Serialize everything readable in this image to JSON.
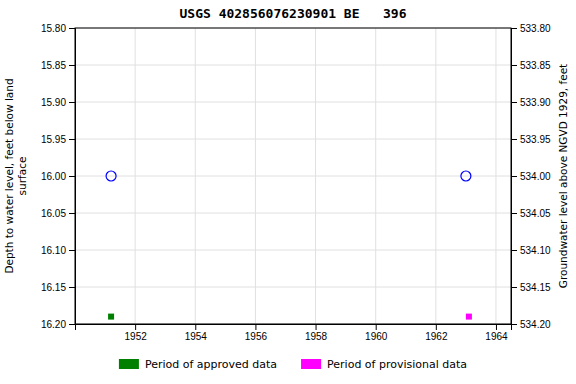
{
  "chart_data": {
    "type": "scatter",
    "title": "USGS 402856076230901 BE   396",
    "ylabel": "Depth to water level, feet below land\nsurface",
    "y2label": "Groundwater level above NGVD 1929, feet",
    "xlim": [
      1950.0,
      1964.5
    ],
    "xticks": [
      1952,
      1954,
      1956,
      1958,
      1960,
      1962,
      1964
    ],
    "ylim": [
      16.2,
      15.8
    ],
    "yticks": [
      {
        "value": 15.8,
        "label": "15.80"
      },
      15.85,
      {
        "value": 15.9,
        "label": "15.90"
      },
      15.95,
      {
        "value": 16.0,
        "label": "16.00"
      },
      16.05,
      {
        "value": 16.1,
        "label": "16.10"
      },
      16.15,
      {
        "value": 16.2,
        "label": "16.20"
      }
    ],
    "y2lim": [
      534.2,
      533.8
    ],
    "y2ticks": [
      {
        "value": 534.2,
        "label": "534.20"
      },
      534.15,
      {
        "value": 534.1,
        "label": "534.10"
      },
      534.05,
      {
        "value": 534.0,
        "label": "534.00"
      },
      533.95,
      {
        "value": 533.9,
        "label": "533.90"
      },
      533.85,
      {
        "value": 533.8,
        "label": "533.80"
      }
    ],
    "grid": true,
    "legend": "bottom",
    "series": [
      {
        "name": "Period of approved data",
        "color": "#008000",
        "marker": "square",
        "x": [
          1951.2
        ],
        "values": [
          16.19
        ]
      },
      {
        "name": "Period of provisional data",
        "color": "#ff00ff",
        "marker": "square",
        "x": [
          1963.1
        ],
        "values": [
          16.19
        ]
      },
      {
        "color": "#0000ff",
        "marker": "circle",
        "x": [
          1951.2,
          1963.0
        ],
        "values": [
          16.0,
          16.0
        ]
      }
    ]
  }
}
